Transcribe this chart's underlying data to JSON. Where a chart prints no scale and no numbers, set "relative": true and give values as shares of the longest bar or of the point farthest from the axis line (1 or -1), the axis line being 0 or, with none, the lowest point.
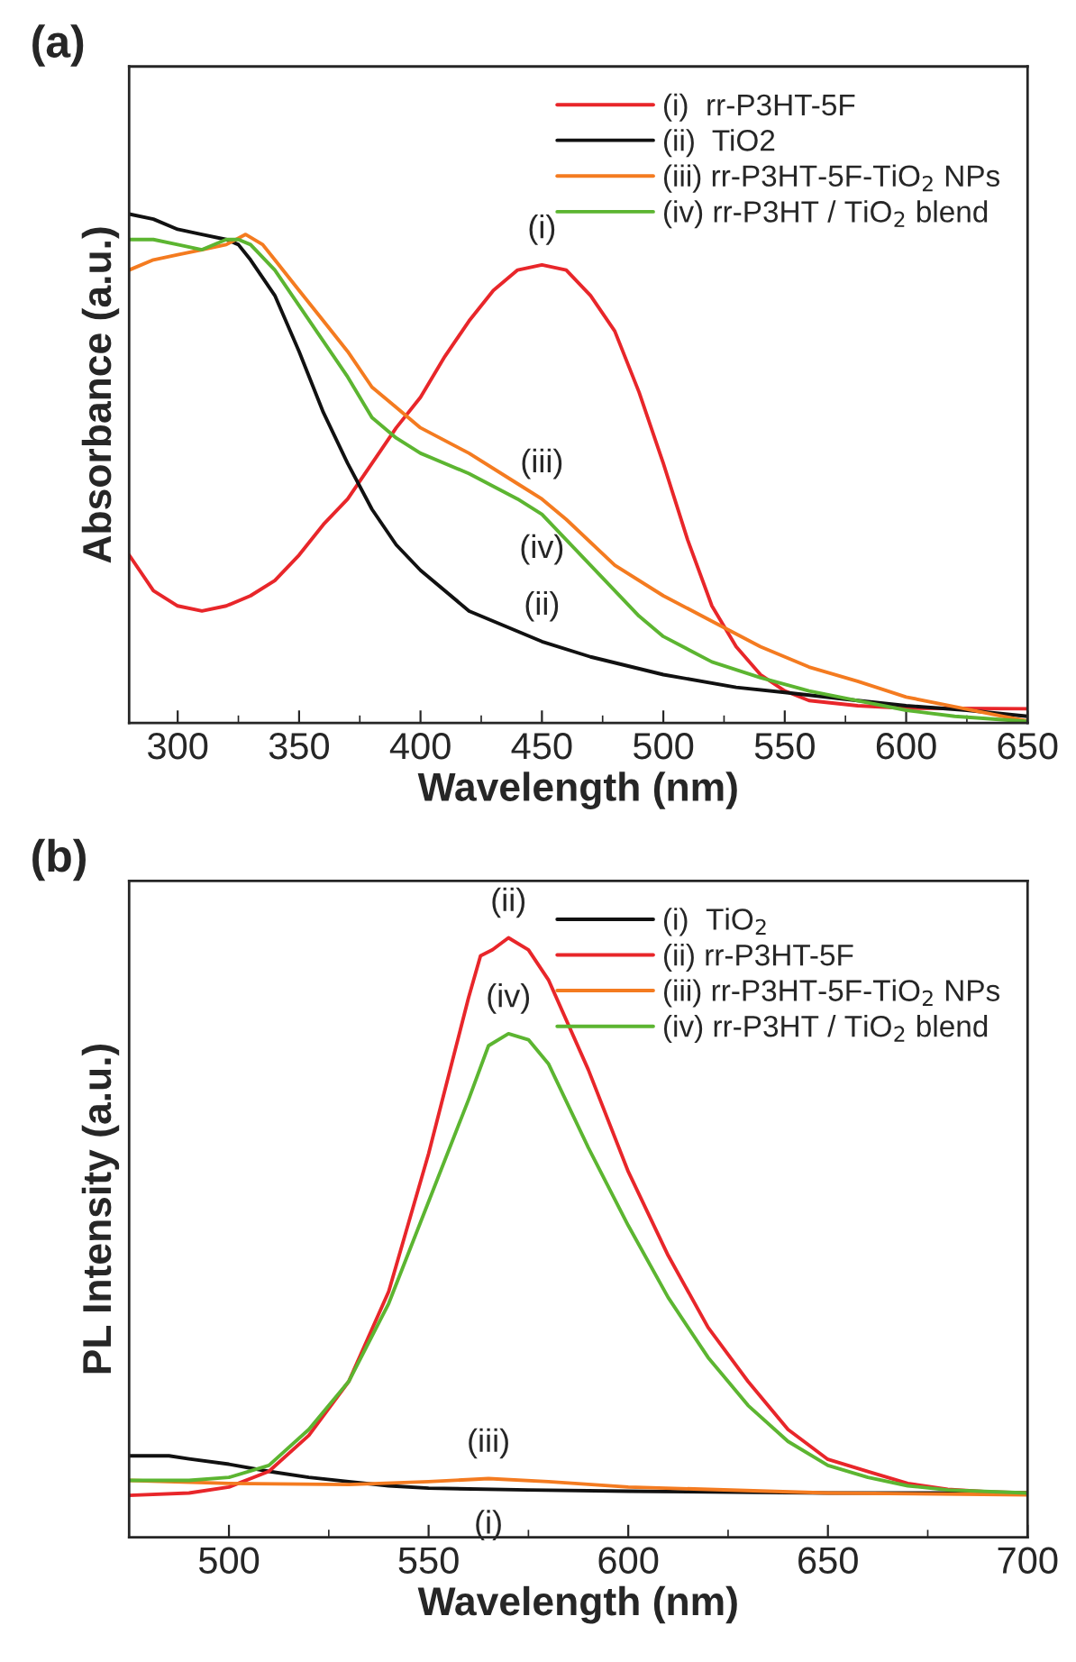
{
  "chart_data": [
    {
      "type": "line",
      "title": "(a)",
      "xlabel": "Wavelength (nm)",
      "ylabel": "Absorbance (a.u.)",
      "relative": true,
      "xlim": [
        280,
        650
      ],
      "xticks": [
        300,
        350,
        400,
        450,
        500,
        550,
        600,
        650
      ],
      "tick_labels": "x",
      "legend": "top right",
      "grid": false,
      "series": [
        {
          "name": "(i)  rr-P3HT-5F",
          "color": "#e8262a",
          "x": [
            280,
            290,
            300,
            310,
            320,
            330,
            340,
            350,
            360,
            370,
            380,
            390,
            400,
            410,
            420,
            430,
            440,
            450,
            460,
            470,
            480,
            490,
            500,
            510,
            520,
            530,
            540,
            550,
            560,
            580,
            600,
            650
          ],
          "values": [
            0.33,
            0.26,
            0.23,
            0.22,
            0.23,
            0.25,
            0.28,
            0.33,
            0.39,
            0.44,
            0.51,
            0.58,
            0.64,
            0.72,
            0.79,
            0.85,
            0.89,
            0.9,
            0.89,
            0.84,
            0.77,
            0.65,
            0.51,
            0.36,
            0.23,
            0.15,
            0.095,
            0.063,
            0.044,
            0.034,
            0.029,
            0.028
          ]
        },
        {
          "name": "(ii)  TiO2",
          "color": "#111111",
          "x": [
            280,
            290,
            300,
            310,
            320,
            325,
            330,
            340,
            350,
            360,
            370,
            380,
            390,
            400,
            420,
            440,
            450,
            470,
            500,
            530,
            550,
            580,
            600,
            625,
            650
          ],
          "values": [
            1.0,
            0.99,
            0.97,
            0.96,
            0.95,
            0.94,
            0.91,
            0.84,
            0.73,
            0.61,
            0.51,
            0.42,
            0.35,
            0.3,
            0.22,
            0.18,
            0.16,
            0.13,
            0.095,
            0.07,
            0.06,
            0.044,
            0.034,
            0.025,
            0.013
          ]
        },
        {
          "name": "(iii) rr-P3HT-5F-TiO$_{2}$ NPs",
          "color": "#f47b20",
          "x": [
            280,
            290,
            300,
            310,
            320,
            328,
            335,
            340,
            350,
            360,
            370,
            380,
            390,
            400,
            420,
            440,
            450,
            460,
            480,
            500,
            520,
            540,
            560,
            580,
            600,
            620,
            640,
            650
          ],
          "values": [
            0.89,
            0.91,
            0.92,
            0.93,
            0.94,
            0.96,
            0.94,
            0.91,
            0.85,
            0.79,
            0.73,
            0.66,
            0.62,
            0.58,
            0.53,
            0.47,
            0.44,
            0.4,
            0.31,
            0.25,
            0.2,
            0.15,
            0.11,
            0.082,
            0.051,
            0.032,
            0.013,
            0.004
          ]
        },
        {
          "name": "(iv) rr-P3HT / TiO$_{2}$ blend",
          "color": "#5cb531",
          "x": [
            280,
            290,
            300,
            310,
            320,
            325,
            330,
            340,
            350,
            360,
            370,
            380,
            390,
            400,
            420,
            440,
            450,
            460,
            470,
            480,
            490,
            500,
            520,
            540,
            560,
            580,
            600,
            620,
            650
          ],
          "values": [
            0.95,
            0.95,
            0.94,
            0.93,
            0.95,
            0.95,
            0.94,
            0.89,
            0.82,
            0.75,
            0.68,
            0.6,
            0.56,
            0.53,
            0.49,
            0.44,
            0.41,
            0.36,
            0.31,
            0.26,
            0.21,
            0.17,
            0.12,
            0.089,
            0.063,
            0.044,
            0.025,
            0.013,
            0.003
          ]
        }
      ],
      "annotations": [
        {
          "text": "(i)",
          "x": 450,
          "y": 0.9
        },
        {
          "text": "(iii)",
          "x": 450,
          "y": 0.44
        },
        {
          "text": "(iv)",
          "x": 450,
          "y": 0.41
        },
        {
          "text": "(ii)",
          "x": 450,
          "y": 0.16
        }
      ]
    },
    {
      "type": "line",
      "title": "(b)",
      "xlabel": "Wavelength (nm)",
      "ylabel": "PL Intensity (a.u.)",
      "relative": true,
      "xlim": [
        475,
        700
      ],
      "xticks": [
        500,
        550,
        600,
        650,
        700
      ],
      "tick_labels": "x",
      "legend": "top right",
      "grid": false,
      "series": [
        {
          "name": "(i)  TiO$_{2}$",
          "color": "#111111",
          "x": [
            475,
            485,
            490,
            500,
            510,
            520,
            530,
            540,
            550,
            575,
            600,
            650,
            700
          ],
          "values": [
            0.136,
            0.136,
            0.131,
            0.122,
            0.11,
            0.1,
            0.093,
            0.086,
            0.082,
            0.079,
            0.077,
            0.074,
            0.074
          ]
        },
        {
          "name": "(ii) rr-P3HT-5F",
          "color": "#e8262a",
          "x": [
            475,
            490,
            500,
            510,
            520,
            530,
            540,
            550,
            555,
            560,
            563,
            566,
            570,
            575,
            580,
            590,
            600,
            610,
            620,
            630,
            640,
            650,
            660,
            670,
            680,
            690,
            700
          ],
          "values": [
            0.07,
            0.074,
            0.084,
            0.11,
            0.17,
            0.26,
            0.41,
            0.64,
            0.77,
            0.9,
            0.97,
            0.98,
            1.0,
            0.98,
            0.93,
            0.78,
            0.61,
            0.47,
            0.35,
            0.26,
            0.18,
            0.13,
            0.11,
            0.09,
            0.08,
            0.076,
            0.074
          ]
        },
        {
          "name": "(iii) rr-P3HT-5F-TiO$_{2}$ NPs",
          "color": "#f47b20",
          "x": [
            475,
            500,
            530,
            550,
            565,
            580,
            600,
            650,
            700
          ],
          "values": [
            0.095,
            0.09,
            0.088,
            0.093,
            0.098,
            0.093,
            0.084,
            0.074,
            0.071
          ]
        },
        {
          "name": "(iv) rr-P3HT / TiO$_{2}$ blend",
          "color": "#5cb531",
          "x": [
            475,
            490,
            500,
            510,
            520,
            530,
            540,
            550,
            560,
            565,
            570,
            575,
            580,
            590,
            600,
            610,
            620,
            630,
            640,
            650,
            660,
            670,
            680,
            700
          ],
          "values": [
            0.095,
            0.095,
            0.1,
            0.12,
            0.18,
            0.26,
            0.39,
            0.56,
            0.73,
            0.82,
            0.84,
            0.83,
            0.79,
            0.65,
            0.52,
            0.4,
            0.3,
            0.22,
            0.16,
            0.12,
            0.1,
            0.086,
            0.079,
            0.074
          ]
        }
      ],
      "annotations": [
        {
          "text": "(ii)",
          "x": 570,
          "y": 1.0
        },
        {
          "text": "(iv)",
          "x": 570,
          "y": 0.84
        },
        {
          "text": "(iii)",
          "x": 565,
          "y": 0.098
        },
        {
          "text": "(i)",
          "x": 565,
          "y": 0.079
        }
      ]
    }
  ]
}
